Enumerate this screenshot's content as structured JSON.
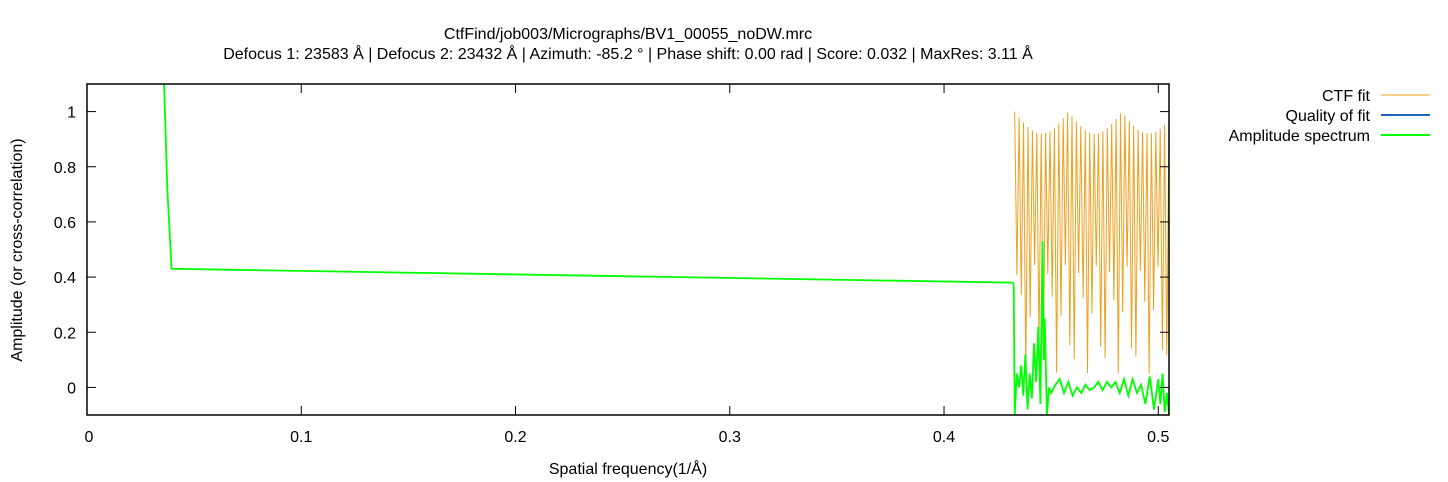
{
  "chart_data": {
    "type": "line",
    "title": "CtfFind/job003/Micrographs/BV1_00055_noDW.mrc",
    "subtitle": "Defocus 1: 23583 Å | Defocus 2: 23432 Å | Azimuth: -85.2 ° | Phase shift: 0.00 rad | Score: 0.032 | MaxRes: 3.11 Å",
    "xlabel": "Spatial frequency(1/Å)",
    "ylabel": "Amplitude (or cross-correlation)",
    "xlim": [
      0,
      0.505
    ],
    "ylim": [
      -0.1,
      1.1
    ],
    "grid": false,
    "legend_position": "outside-top-right",
    "x_ticks": [
      {
        "value": 0,
        "label": "0"
      },
      {
        "value": 0.1,
        "label": "0.1"
      },
      {
        "value": 0.2,
        "label": "0.2"
      },
      {
        "value": 0.3,
        "label": "0.3"
      },
      {
        "value": 0.4,
        "label": "0.4"
      },
      {
        "value": 0.5,
        "label": "0.5"
      }
    ],
    "y_ticks": [
      {
        "value": 0,
        "label": "0"
      },
      {
        "value": 0.2,
        "label": "0.2"
      },
      {
        "value": 0.4,
        "label": "0.4"
      },
      {
        "value": 0.6,
        "label": "0.6"
      },
      {
        "value": 0.8,
        "label": "0.8"
      },
      {
        "value": 1,
        "label": "1"
      }
    ],
    "series": [
      {
        "name": "CTF fit",
        "color": "#f0a020",
        "style": "oscillating",
        "x_start": 0.433,
        "x_end": 0.505,
        "peak_count": 35,
        "max": 1.0,
        "min": 0.0
      },
      {
        "name": "Quality of fit",
        "color": "#1f63b8",
        "points": []
      },
      {
        "name": "Amplitude spectrum",
        "color": "#00ff00",
        "points": [
          [
            0.036,
            1.1
          ],
          [
            0.0375,
            0.72
          ],
          [
            0.0395,
            0.43
          ],
          [
            0.432,
            0.38
          ],
          [
            0.4325,
            0.37
          ],
          [
            0.433,
            -0.1
          ],
          [
            0.434,
            0.05
          ],
          [
            0.435,
            0.0
          ],
          [
            0.436,
            0.08
          ],
          [
            0.437,
            -0.03
          ],
          [
            0.438,
            0.12
          ],
          [
            0.439,
            -0.08
          ],
          [
            0.44,
            0.05
          ],
          [
            0.441,
            -0.04
          ],
          [
            0.442,
            0.16
          ],
          [
            0.443,
            0.02
          ],
          [
            0.444,
            0.22
          ],
          [
            0.445,
            -0.06
          ],
          [
            0.446,
            0.53
          ],
          [
            0.4465,
            0.1
          ],
          [
            0.447,
            0.25
          ],
          [
            0.448,
            -0.1
          ],
          [
            0.449,
            0.0
          ],
          [
            0.45,
            -0.02
          ],
          [
            0.452,
            0.01
          ],
          [
            0.454,
            0.03
          ],
          [
            0.456,
            -0.02
          ],
          [
            0.458,
            0.02
          ],
          [
            0.46,
            -0.03
          ],
          [
            0.462,
            0.0
          ],
          [
            0.464,
            -0.02
          ],
          [
            0.466,
            0.01
          ],
          [
            0.468,
            -0.01
          ],
          [
            0.47,
            0.0
          ],
          [
            0.472,
            0.02
          ],
          [
            0.474,
            -0.01
          ],
          [
            0.476,
            0.02
          ],
          [
            0.478,
            0.0
          ],
          [
            0.48,
            0.02
          ],
          [
            0.482,
            -0.02
          ],
          [
            0.484,
            0.03
          ],
          [
            0.486,
            -0.03
          ],
          [
            0.488,
            0.03
          ],
          [
            0.49,
            -0.02
          ],
          [
            0.492,
            0.01
          ],
          [
            0.494,
            -0.06
          ],
          [
            0.496,
            0.04
          ],
          [
            0.498,
            -0.08
          ],
          [
            0.5,
            0.03
          ],
          [
            0.501,
            -0.06
          ],
          [
            0.502,
            0.05
          ],
          [
            0.503,
            -0.09
          ],
          [
            0.504,
            -0.02
          ],
          [
            0.505,
            -0.1
          ]
        ]
      }
    ]
  }
}
